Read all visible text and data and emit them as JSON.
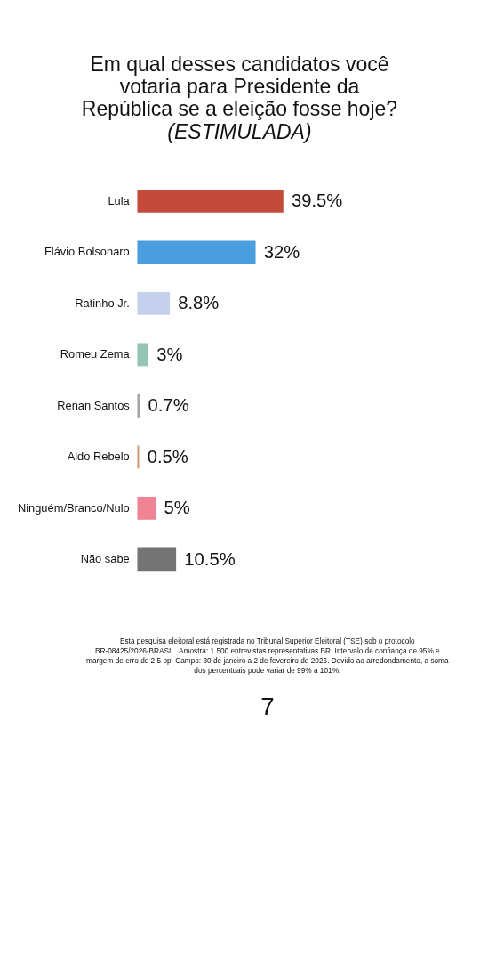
{
  "chart_data": {
    "type": "bar",
    "orientation": "horizontal",
    "title": "Em qual desses candidatos você votaria para Presidente da República se a eleição fosse hoje?",
    "subtitle": "(ESTIMULADA)",
    "categories": [
      "Lula",
      "Flávio Bolsonaro",
      "Ratinho Jr.",
      "Romeu Zema",
      "Renan Santos",
      "Aldo Rebelo",
      "Ninguém/Branco/Nulo",
      "Não sabe"
    ],
    "values": [
      39.5,
      32,
      8.8,
      3,
      0.7,
      0.5,
      5,
      10.5
    ],
    "colors": [
      "#c44a3c",
      "#4a9ede",
      "#c4d0ec",
      "#94c4b4",
      "#a8a4a4",
      "#d49c7c",
      "#f08494",
      "#747474"
    ],
    "value_labels": [
      "39.5%",
      "32%",
      "8.8%",
      "3%",
      "0.7%",
      "0.5%",
      "5%",
      "10.5%"
    ],
    "annotations": [
      "Esta pesquisa eleitoral está registrada no Tribunal Superior Eleitoral (TSE) sob o protocolo BR-08425/2026-BRASIL. Amostra: 1.500 entrevistas representativas BR. Intervalo de confiança de 95% e margem de erro de 2,5 pp. Campo: 30 de janeiro a 2 de fevereiro de 2026. Devido ao arredondamento, a soma dos percentuais pode variar de 99% a 101%.",
      "7"
    ]
  }
}
